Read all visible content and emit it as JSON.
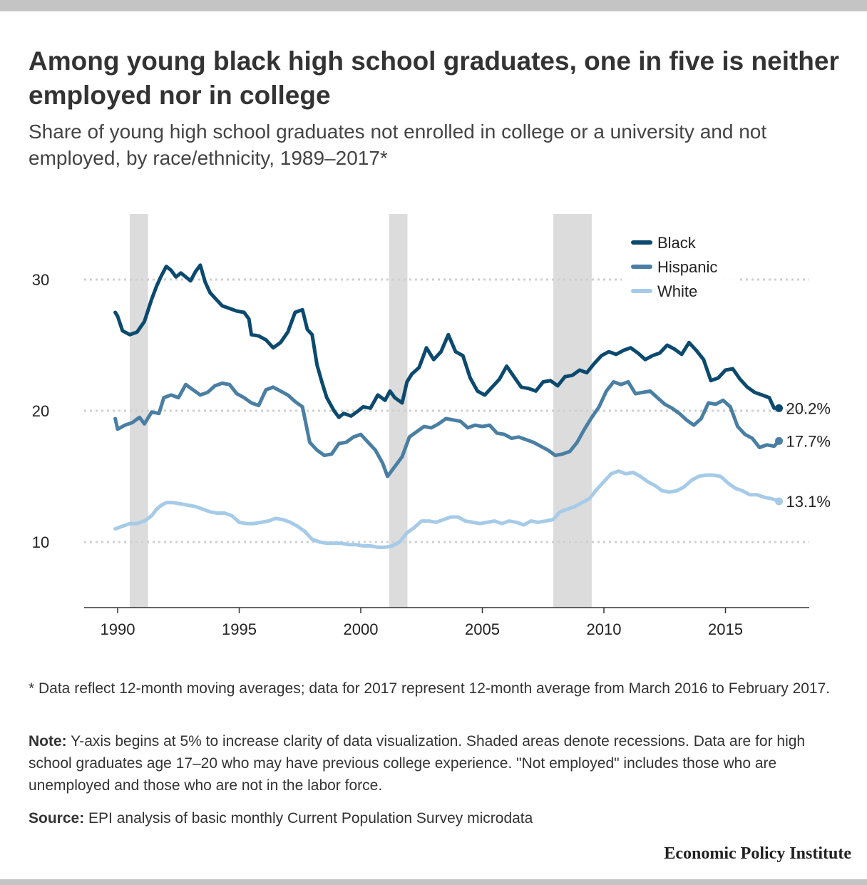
{
  "header": {
    "title": "Among young black high school graduates, one in five is neither employed nor in college",
    "subtitle": "Share of young high school graduates not enrolled in college or a university and not employed, by race/ethnicity, 1989–2017*"
  },
  "chart_data": {
    "type": "line",
    "x_unit": "year",
    "xlim": [
      1988.7,
      2018.5
    ],
    "ylim": [
      5,
      32
    ],
    "yticks": [
      10,
      20,
      30
    ],
    "xticks": [
      1990,
      1995,
      2000,
      2005,
      2010,
      2015
    ],
    "grid": "horizontal dotted at y ticks",
    "legend_position": "top-right",
    "recessions": [
      [
        1990.5,
        1991.25
      ],
      [
        2001.17,
        2001.92
      ],
      [
        2007.92,
        2009.5
      ]
    ],
    "series": [
      {
        "name": "Black",
        "color": "#0b4a6e",
        "end_label": "20.2%",
        "x": [
          1989.9,
          1990.0,
          1990.2,
          1990.5,
          1990.8,
          1991.1,
          1991.4,
          1991.6,
          1991.8,
          1992.0,
          1992.2,
          1992.4,
          1992.6,
          1992.8,
          1993.0,
          1993.2,
          1993.4,
          1993.6,
          1993.8,
          1994.0,
          1994.3,
          1994.6,
          1994.9,
          1995.2,
          1995.4,
          1995.5,
          1995.8,
          1996.1,
          1996.4,
          1996.7,
          1997.0,
          1997.3,
          1997.6,
          1997.8,
          1998.0,
          1998.2,
          1998.4,
          1998.6,
          1998.9,
          1999.1,
          1999.3,
          1999.6,
          1999.9,
          2000.1,
          2000.4,
          2000.7,
          2001.0,
          2001.2,
          2001.4,
          2001.7,
          2001.9,
          2002.1,
          2002.4,
          2002.7,
          2003.0,
          2003.3,
          2003.6,
          2003.9,
          2004.2,
          2004.5,
          2004.8,
          2005.1,
          2005.4,
          2005.7,
          2006.0,
          2006.3,
          2006.6,
          2006.9,
          2007.2,
          2007.5,
          2007.8,
          2008.1,
          2008.4,
          2008.7,
          2009.0,
          2009.3,
          2009.6,
          2009.9,
          2010.2,
          2010.5,
          2010.8,
          2011.1,
          2011.4,
          2011.7,
          2012.0,
          2012.3,
          2012.6,
          2012.9,
          2013.2,
          2013.5,
          2013.8,
          2014.1,
          2014.4,
          2014.7,
          2015.0,
          2015.3,
          2015.6,
          2015.9,
          2016.2,
          2016.5,
          2016.8,
          2017.0,
          2017.2
        ],
        "y": [
          27.5,
          27.2,
          26.1,
          25.8,
          26.0,
          26.8,
          28.5,
          29.5,
          30.3,
          31.0,
          30.7,
          30.2,
          30.5,
          30.2,
          29.9,
          30.6,
          31.1,
          29.8,
          29.0,
          28.6,
          28.0,
          27.8,
          27.6,
          27.5,
          27.0,
          25.8,
          25.7,
          25.4,
          24.8,
          25.2,
          26.0,
          27.5,
          27.7,
          26.2,
          25.8,
          23.5,
          22.2,
          21.0,
          20.0,
          19.5,
          19.8,
          19.6,
          20.0,
          20.3,
          20.2,
          21.2,
          20.8,
          21.5,
          21.0,
          20.6,
          22.2,
          22.8,
          23.3,
          24.8,
          23.9,
          24.5,
          25.8,
          24.5,
          24.2,
          22.5,
          21.5,
          21.2,
          21.8,
          22.4,
          23.4,
          22.6,
          21.8,
          21.7,
          21.5,
          22.2,
          22.3,
          21.9,
          22.6,
          22.7,
          23.1,
          22.9,
          23.6,
          24.2,
          24.5,
          24.3,
          24.6,
          24.8,
          24.4,
          23.9,
          24.2,
          24.4,
          25.0,
          24.7,
          24.3,
          25.2,
          24.6,
          23.9,
          22.3,
          22.5,
          23.1,
          23.2,
          22.4,
          21.8,
          21.4,
          21.2,
          21.0,
          20.2,
          20.2
        ]
      },
      {
        "name": "Hispanic",
        "color": "#4a7fa3",
        "end_label": "17.7%",
        "x": [
          1989.9,
          1990.0,
          1990.3,
          1990.6,
          1990.9,
          1991.1,
          1991.4,
          1991.7,
          1991.9,
          1992.2,
          1992.5,
          1992.8,
          1993.1,
          1993.4,
          1993.7,
          1994.0,
          1994.3,
          1994.6,
          1994.9,
          1995.2,
          1995.5,
          1995.8,
          1996.1,
          1996.4,
          1996.7,
          1997.0,
          1997.3,
          1997.6,
          1997.9,
          1998.2,
          1998.5,
          1998.8,
          1999.1,
          1999.4,
          1999.7,
          2000.0,
          2000.3,
          2000.6,
          2000.9,
          2001.1,
          2001.3,
          2001.5,
          2001.7,
          2002.0,
          2002.3,
          2002.6,
          2002.9,
          2003.2,
          2003.5,
          2003.8,
          2004.1,
          2004.4,
          2004.7,
          2005.0,
          2005.3,
          2005.6,
          2005.9,
          2006.2,
          2006.5,
          2006.8,
          2007.1,
          2007.4,
          2007.7,
          2008.0,
          2008.3,
          2008.6,
          2008.9,
          2009.2,
          2009.5,
          2009.8,
          2010.1,
          2010.4,
          2010.7,
          2011.0,
          2011.3,
          2011.6,
          2011.9,
          2012.2,
          2012.5,
          2012.8,
          2013.1,
          2013.4,
          2013.7,
          2014.0,
          2014.3,
          2014.6,
          2014.9,
          2015.2,
          2015.5,
          2015.8,
          2016.1,
          2016.4,
          2016.7,
          2017.0,
          2017.2
        ],
        "y": [
          19.4,
          18.6,
          18.9,
          19.1,
          19.5,
          19.0,
          19.9,
          19.8,
          21.0,
          21.2,
          21.0,
          22.0,
          21.6,
          21.2,
          21.4,
          21.9,
          22.1,
          22.0,
          21.3,
          21.0,
          20.6,
          20.4,
          21.6,
          21.8,
          21.5,
          21.2,
          20.7,
          20.3,
          17.6,
          17.0,
          16.6,
          16.7,
          17.5,
          17.6,
          18.0,
          18.2,
          17.6,
          17.0,
          16.0,
          15.0,
          15.5,
          16.0,
          16.5,
          18.0,
          18.4,
          18.8,
          18.7,
          19.0,
          19.4,
          19.3,
          19.2,
          18.7,
          18.9,
          18.8,
          18.9,
          18.3,
          18.2,
          17.9,
          18.0,
          17.8,
          17.6,
          17.3,
          17.0,
          16.6,
          16.7,
          16.9,
          17.6,
          18.6,
          19.5,
          20.3,
          21.5,
          22.2,
          22.0,
          22.2,
          21.3,
          21.4,
          21.5,
          21.0,
          20.5,
          20.2,
          19.8,
          19.3,
          18.9,
          19.4,
          20.6,
          20.5,
          20.8,
          20.3,
          18.8,
          18.2,
          17.9,
          17.2,
          17.4,
          17.3,
          17.7
        ]
      },
      {
        "name": "White",
        "color": "#a6cbe8",
        "end_label": "13.1%",
        "x": [
          1989.9,
          1990.2,
          1990.5,
          1990.8,
          1991.1,
          1991.4,
          1991.6,
          1991.8,
          1992.0,
          1992.3,
          1992.6,
          1992.9,
          1993.2,
          1993.5,
          1993.8,
          1994.1,
          1994.4,
          1994.7,
          1995.0,
          1995.3,
          1995.6,
          1995.9,
          1996.2,
          1996.5,
          1996.8,
          1997.1,
          1997.4,
          1997.7,
          1998.0,
          1998.3,
          1998.6,
          1998.9,
          1999.2,
          1999.5,
          1999.8,
          2000.1,
          2000.4,
          2000.7,
          2001.0,
          2001.3,
          2001.6,
          2001.9,
          2002.2,
          2002.5,
          2002.8,
          2003.1,
          2003.4,
          2003.7,
          2004.0,
          2004.3,
          2004.6,
          2004.9,
          2005.2,
          2005.5,
          2005.8,
          2006.1,
          2006.4,
          2006.7,
          2007.0,
          2007.3,
          2007.6,
          2007.9,
          2008.2,
          2008.5,
          2008.8,
          2009.1,
          2009.4,
          2009.7,
          2010.0,
          2010.3,
          2010.6,
          2010.9,
          2011.2,
          2011.5,
          2011.8,
          2012.1,
          2012.4,
          2012.7,
          2013.0,
          2013.3,
          2013.6,
          2013.9,
          2014.2,
          2014.5,
          2014.8,
          2015.1,
          2015.4,
          2015.7,
          2016.0,
          2016.3,
          2016.6,
          2016.9,
          2017.2
        ],
        "y": [
          11.0,
          11.2,
          11.4,
          11.4,
          11.6,
          12.0,
          12.5,
          12.8,
          13.0,
          13.0,
          12.9,
          12.8,
          12.7,
          12.5,
          12.3,
          12.2,
          12.2,
          12.0,
          11.5,
          11.4,
          11.4,
          11.5,
          11.6,
          11.8,
          11.7,
          11.5,
          11.2,
          10.8,
          10.2,
          10.0,
          9.9,
          9.9,
          9.9,
          9.8,
          9.8,
          9.7,
          9.7,
          9.6,
          9.6,
          9.7,
          10.0,
          10.7,
          11.1,
          11.6,
          11.6,
          11.5,
          11.7,
          11.9,
          11.9,
          11.6,
          11.5,
          11.4,
          11.5,
          11.6,
          11.4,
          11.6,
          11.5,
          11.3,
          11.6,
          11.5,
          11.6,
          11.7,
          12.3,
          12.5,
          12.7,
          13.0,
          13.3,
          14.0,
          14.6,
          15.2,
          15.4,
          15.2,
          15.3,
          15.0,
          14.6,
          14.3,
          13.9,
          13.8,
          13.9,
          14.2,
          14.7,
          15.0,
          15.1,
          15.1,
          15.0,
          14.5,
          14.1,
          13.9,
          13.6,
          13.6,
          13.4,
          13.3,
          13.1
        ]
      }
    ]
  },
  "footer": {
    "footnote": "* Data reflect 12-month moving averages; data for 2017 represent 12-month average from March 2016 to February 2017.",
    "note_label": "Note:",
    "note_text": " Y-axis begins at 5% to increase clarity of data visualization. Shaded areas denote recessions. Data are for high school graduates age 17–20 who may have previous college experience. \"Not employed\" includes those who are unemployed and those who are not in the labor force.",
    "source_label": "Source:",
    "source_text": " EPI analysis of basic monthly Current Population Survey microdata",
    "brand": "Economic Policy Institute"
  }
}
